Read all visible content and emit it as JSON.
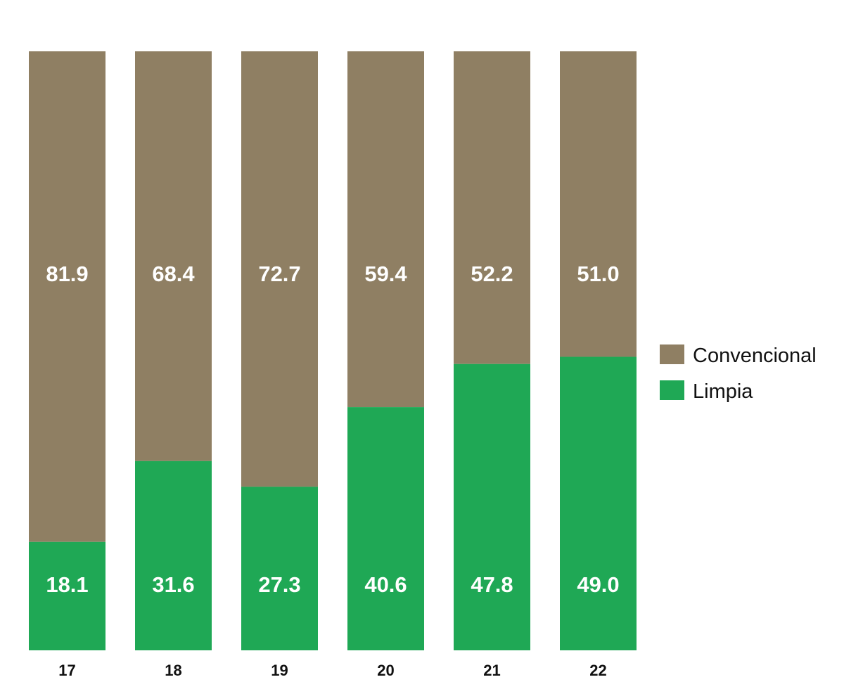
{
  "chart_data": {
    "type": "bar",
    "stacked": true,
    "categories": [
      "17",
      "18",
      "19",
      "20",
      "21",
      "22"
    ],
    "series": [
      {
        "name": "Limpia",
        "color": "#1fa855",
        "values": [
          18.1,
          31.6,
          27.3,
          40.6,
          47.8,
          49.0
        ],
        "labels": [
          "18.1",
          "31.6",
          "27.3",
          "40.6",
          "47.8",
          "49.0"
        ]
      },
      {
        "name": "Convencional",
        "color": "#8f7f63",
        "values": [
          81.9,
          68.4,
          72.7,
          59.4,
          52.2,
          51.0
        ],
        "labels": [
          "81.9",
          "68.4",
          "72.7",
          "59.4",
          "52.2",
          "51.0"
        ]
      }
    ],
    "ylim": [
      0,
      100
    ],
    "grid": false,
    "legend_position": "right",
    "legend": [
      "Convencional",
      "Limpia"
    ]
  }
}
